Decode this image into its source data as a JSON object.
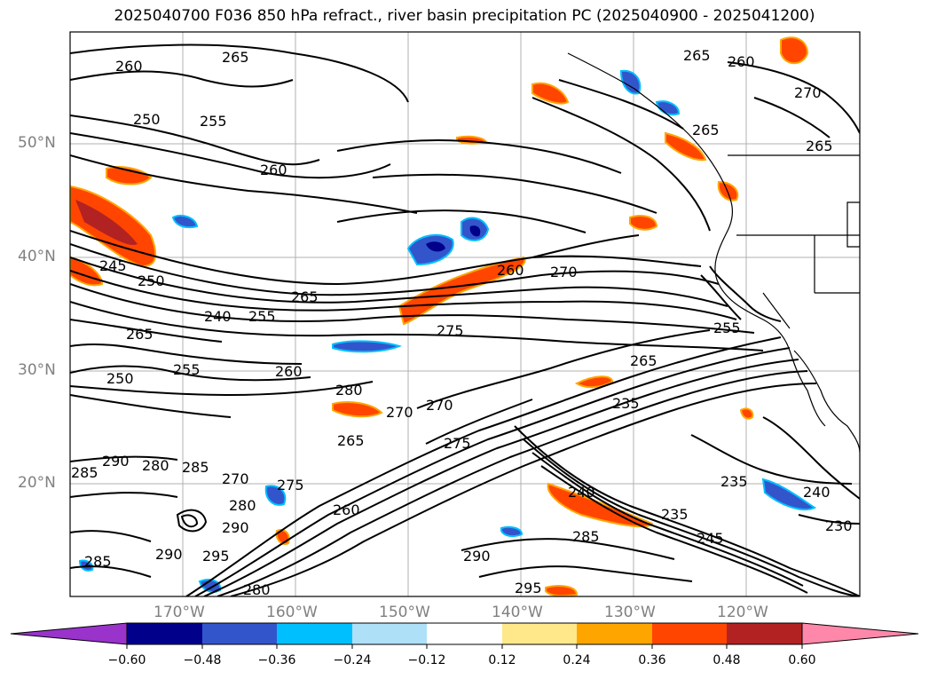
{
  "title": "2025040700 F036 850 hPa refract., river basin precipitation PC (2025040900 - 2025041200)",
  "lat_labels": [
    "50°N",
    "40°N",
    "30°N",
    "20°N"
  ],
  "lon_labels": [
    "170°W",
    "160°W",
    "150°W",
    "140°W",
    "130°W",
    "120°W"
  ],
  "contour_labels": [
    "260",
    "265",
    "265",
    "260",
    "270",
    "255",
    "250",
    "265",
    "260",
    "265",
    "245",
    "250",
    "265",
    "240",
    "255",
    "260",
    "270",
    "265",
    "275",
    "250",
    "255",
    "260",
    "280",
    "265",
    "235",
    "270",
    "270",
    "275",
    "285",
    "290",
    "280",
    "285",
    "270",
    "265",
    "275",
    "280",
    "260",
    "240",
    "235",
    "245",
    "285",
    "235",
    "240",
    "230",
    "290",
    "295",
    "290",
    "280",
    "285",
    "290",
    "295",
    "255"
  ],
  "colorbar": {
    "ticks": [
      "−0.60",
      "−0.48",
      "−0.36",
      "−0.24",
      "−0.12",
      "0.12",
      "0.24",
      "0.36",
      "0.48",
      "0.60"
    ],
    "colors": [
      "#9933cc",
      "#00008b",
      "#3355cc",
      "#00bfff",
      "#aee0f8",
      "#ffffff",
      "#ffe88a",
      "#ffa500",
      "#ff4500",
      "#b22222",
      "#ff88aa"
    ]
  },
  "palette": {
    "land_outline": "#000000",
    "grid": "#b0b0b0",
    "positive_fill": "#ff4500",
    "negative_fill": "#3355cc"
  }
}
